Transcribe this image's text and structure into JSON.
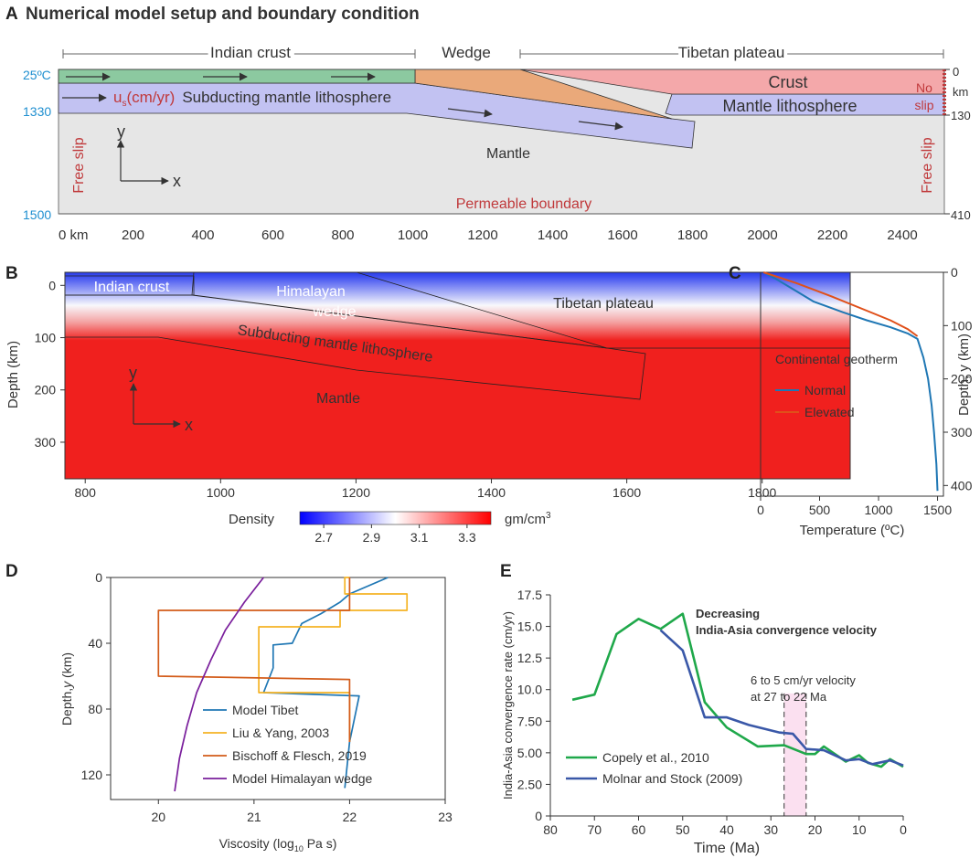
{
  "figure": {
    "panel_a": {
      "letter": "A",
      "title": "Numerical model setup and boundary condition",
      "region_indian": "Indian crust",
      "region_wedge": "Wedge",
      "region_tibet": "Tibetan plateau",
      "crust": "Crust",
      "subducting": "Subducting mantle lithosphere",
      "mantle_litho": "Mantle lithosphere",
      "mantle": "Mantle",
      "no_slip_1": "No",
      "no_slip_2": "slip",
      "free_slip_left": "Free slip",
      "free_slip_right": "Free slip",
      "permeable": "Permeable boundary",
      "temp_top": "25ºC",
      "temp_1330": "1330",
      "temp_1500": "1500",
      "depth_0": "0",
      "depth_km": "km",
      "depth_130": "130",
      "depth_410": "410",
      "velocity_u": "u",
      "velocity_sub": "s",
      "velocity_unit": "(cm/yr)",
      "axis_y": "y",
      "axis_x": "x",
      "x_ticks": [
        "0 km",
        "200",
        "400",
        "600",
        "800",
        "1000",
        "1200",
        "1400",
        "1600",
        "1800",
        "2000",
        "2200",
        "2400"
      ],
      "colors": {
        "crust_indian": "#8cc9a0",
        "wedge": "#eaa97a",
        "crust_tibet": "#f4a8aa",
        "litho": "#c2c2f2",
        "mantle": "#e6e6e6",
        "blue_text": "#1f8fd0",
        "red_text": "#c0393b"
      }
    },
    "panel_b": {
      "letter": "B",
      "indian_crust": "Indian crust",
      "himalayan": "Himalayan",
      "wedge": "wedge",
      "tibetan": "Tibetan plateau",
      "subducting": "Subducting mantle lithosphere",
      "mantle": "Mantle",
      "axis_y": "y",
      "axis_x": "x",
      "ylabel": "Depth (km)",
      "density_label": "Density",
      "density_unit": "gm/cm",
      "density_unit_sup": "3",
      "x_ticks": [
        "800",
        "1000",
        "1200",
        "1400",
        "1600",
        "1800"
      ],
      "y_ticks": [
        "0",
        "100",
        "200",
        "300"
      ],
      "cbar_ticks": [
        "2.7",
        "2.9",
        "3.1",
        "3.3"
      ]
    },
    "panel_c": {
      "letter": "C",
      "legend_title": "Continental geotherm",
      "ylabel": "Depth, y (km)"
    },
    "panel_d": {
      "letter": "D"
    },
    "panel_e": {
      "letter": "E",
      "annot_1": "Decreasing",
      "annot_2": "India-Asia convergence velocity",
      "annot_3": "6 to 5 cm/yr velocity",
      "annot_4": "at 27 to 22 Ma"
    }
  },
  "chart_data": [
    {
      "panel": "C",
      "type": "line",
      "title": "",
      "xlabel": "Temperature (ºC)",
      "ylabel": "Depth, y (km)",
      "xlim": [
        0,
        1550
      ],
      "ylim": [
        0,
        420
      ],
      "y_inverted": true,
      "x_ticks": [
        0,
        500,
        1000,
        1500
      ],
      "y_ticks": [
        0,
        100,
        200,
        300,
        400
      ],
      "series": [
        {
          "name": "Normal",
          "color": "#1f77b4",
          "x": [
            25,
            150,
            300,
            450,
            700,
            900,
            1100,
            1250,
            1330,
            1380,
            1420,
            1450,
            1470,
            1490,
            1500
          ],
          "y": [
            0,
            15,
            35,
            55,
            75,
            90,
            103,
            115,
            125,
            160,
            200,
            250,
            300,
            360,
            410
          ]
        },
        {
          "name": "Elevated",
          "color": "#e0501a",
          "x": [
            25,
            300,
            600,
            900,
            1100,
            1250,
            1330
          ],
          "y": [
            0,
            20,
            45,
            72,
            90,
            107,
            120
          ]
        }
      ]
    },
    {
      "panel": "D",
      "type": "line",
      "title": "",
      "xlabel": "Viscosity (log10 Pa s)",
      "ylabel": "Depth,y (km)",
      "xlim": [
        19.5,
        23
      ],
      "ylim": [
        0,
        135
      ],
      "y_inverted": true,
      "x_ticks": [
        20,
        21,
        22,
        23
      ],
      "y_ticks": [
        0,
        40,
        80,
        120
      ],
      "series": [
        {
          "name": "Model Tibet",
          "color": "#1f77b4",
          "x": [
            22.4,
            22.0,
            21.9,
            21.7,
            21.5,
            21.4,
            21.2,
            21.2,
            21.1,
            22.1,
            22.0,
            21.95
          ],
          "y": [
            0,
            10,
            15,
            22,
            28,
            40,
            41,
            55,
            70,
            72,
            100,
            128
          ]
        },
        {
          "name": "Liu & Yang, 2003",
          "color": "#f5b324",
          "x": [
            22.0,
            21.95,
            21.95,
            22.6,
            22.6,
            21.9,
            21.9,
            21.05,
            21.05,
            22.0,
            22.0,
            22.0
          ],
          "y": [
            0,
            0,
            10,
            10,
            20,
            20,
            30,
            30,
            70,
            70,
            75,
            100
          ]
        },
        {
          "name": "Bischoff & Flesch, 2019",
          "color": "#d35c1a",
          "x": [
            22.0,
            22.0,
            20.0,
            20.0,
            22.0,
            22.0
          ],
          "y": [
            0,
            20,
            20,
            60,
            62,
            100
          ]
        },
        {
          "name": "Model Himalayan wedge",
          "color": "#7a1f9c",
          "x": [
            21.1,
            20.9,
            20.7,
            20.55,
            20.4,
            20.3,
            20.22,
            20.17
          ],
          "y": [
            0,
            15,
            32,
            50,
            70,
            90,
            110,
            130
          ]
        }
      ]
    },
    {
      "panel": "E",
      "type": "line",
      "title": "",
      "xlabel": "Time (Ma)",
      "ylabel": "India-Asia convergence rate (cm/yr)",
      "xlim": [
        80,
        0
      ],
      "ylim": [
        0,
        17.5
      ],
      "x_ticks": [
        80,
        70,
        60,
        50,
        40,
        30,
        20,
        10,
        0
      ],
      "y_ticks": [
        0,
        2.5,
        5.0,
        7.5,
        10.0,
        12.5,
        15.0,
        17.5
      ],
      "y_tick_labels": [
        "0",
        "2.50",
        "5.00",
        "7.50",
        "10.0",
        "12.5",
        "15.0",
        "17.5"
      ],
      "highlight": {
        "from": 27,
        "to": 22
      },
      "series": [
        {
          "name": "Copely et al., 2010",
          "color": "#1fa84a",
          "x": [
            75,
            70,
            65,
            60,
            55,
            50,
            45,
            40,
            33,
            27,
            22,
            20,
            18,
            13,
            10,
            8,
            5,
            3,
            0
          ],
          "y": [
            9.2,
            9.6,
            14.4,
            15.6,
            14.8,
            16.0,
            9.0,
            7.0,
            5.5,
            5.6,
            4.9,
            4.9,
            5.5,
            4.3,
            4.8,
            4.2,
            3.9,
            4.5,
            3.9
          ]
        },
        {
          "name": "Molnar and Stock (2009)",
          "color": "#3a58a8",
          "x": [
            55,
            50,
            45,
            40,
            35,
            28,
            25,
            22,
            18,
            13,
            10,
            7,
            3,
            0
          ],
          "y": [
            14.7,
            13.1,
            7.8,
            7.8,
            7.2,
            6.6,
            6.5,
            5.3,
            5.2,
            4.4,
            4.5,
            4.1,
            4.4,
            4.0
          ]
        }
      ]
    }
  ]
}
